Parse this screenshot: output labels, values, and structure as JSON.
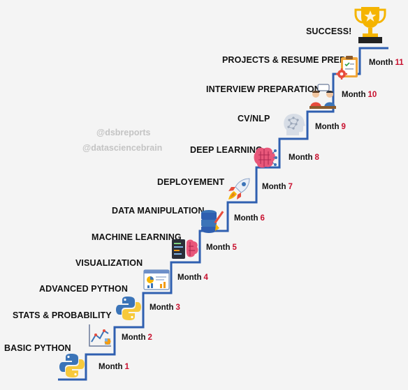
{
  "watermarks": [
    "@dsbreports",
    "@datasciencebrain"
  ],
  "month_word": "Month",
  "final_title": "SUCCESS!",
  "stages": [
    {
      "title": "BASIC PYTHON",
      "month": "1",
      "icon": "python-logo-icon"
    },
    {
      "title": "STATS & PROBABILITY",
      "month": "2",
      "icon": "line-chart-icon"
    },
    {
      "title": "ADVANCED PYTHON",
      "month": "3",
      "icon": "python-logo-icon"
    },
    {
      "title": "VISUALIZATION",
      "month": "4",
      "icon": "dashboard-icon"
    },
    {
      "title": "MACHINE LEARNING",
      "month": "5",
      "icon": "code-brain-icon"
    },
    {
      "title": "DATA MANIPULATION",
      "month": "6",
      "icon": "database-icon"
    },
    {
      "title": "DEPLOYEMENT",
      "month": "7",
      "icon": "rocket-icon"
    },
    {
      "title": "DEEP LEARNING",
      "month": "8",
      "icon": "neural-brain-icon"
    },
    {
      "title": "CV/NLP",
      "month": "9",
      "icon": "ai-head-icon"
    },
    {
      "title": "INTERVIEW PREPARATION",
      "month": "10",
      "icon": "interview-icon"
    },
    {
      "title": "PROJECTS & RESUME PREP",
      "month": "11",
      "icon": "clipboard-gear-icon"
    }
  ],
  "colors": {
    "stair_line": "#2f5fb0",
    "month_number": "#c8102e",
    "text": "#111111",
    "watermark": "#c4c4c4",
    "trophy_gold": "#f5b400",
    "trophy_dark": "#222222"
  }
}
